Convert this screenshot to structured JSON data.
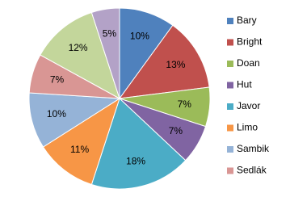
{
  "chart_data": {
    "type": "pie",
    "categories": [
      "Bary",
      "Bright",
      "Doan",
      "Hut",
      "Javor",
      "Limo",
      "Sambik",
      "Sedlák",
      null,
      null
    ],
    "values": [
      10,
      13,
      7,
      7,
      18,
      11,
      10,
      7,
      12,
      5
    ],
    "value_labels": [
      "10%",
      "13%",
      "7%",
      "7%",
      "18%",
      "11%",
      "10%",
      "7%",
      "12%",
      "5%"
    ],
    "colors": [
      "#4f81bd",
      "#c0504d",
      "#9bbb59",
      "#8064a2",
      "#4bacc6",
      "#f79646",
      "#95b3d7",
      "#d99694",
      "#c3d69b",
      "#b3a2c7"
    ],
    "legend": "right"
  }
}
